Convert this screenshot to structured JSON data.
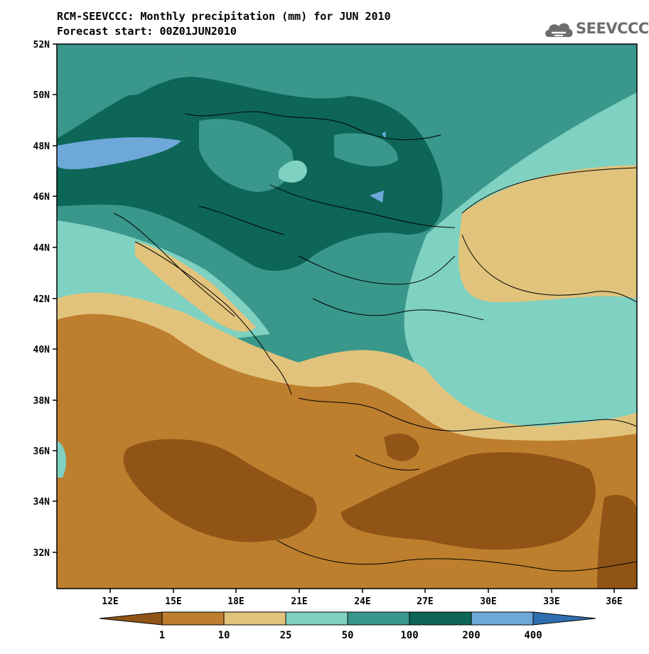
{
  "title": {
    "line1": "RCM-SEEVCCC: Monthly precipitation (mm) for JUN 2010",
    "line2": "Forecast start: 00Z01JUN2010"
  },
  "logo": {
    "text": "SEEVCCC",
    "icon": "cloud-icon"
  },
  "axes": {
    "lat_labels": [
      "52N",
      "50N",
      "48N",
      "46N",
      "44N",
      "42N",
      "40N",
      "38N",
      "36N",
      "34N",
      "32N"
    ],
    "lon_labels": [
      "12E",
      "15E",
      "18E",
      "21E",
      "24E",
      "27E",
      "30E",
      "33E",
      "36E"
    ]
  },
  "colorbar": {
    "boundaries": [
      "1",
      "10",
      "25",
      "50",
      "100",
      "200",
      "400"
    ],
    "colors": [
      "#8f5416",
      "#bd7e2e",
      "#e2c37c",
      "#7fd1c1",
      "#3a978b",
      "#0d6657",
      "#6ea8d9",
      "#2f6faf"
    ]
  }
}
